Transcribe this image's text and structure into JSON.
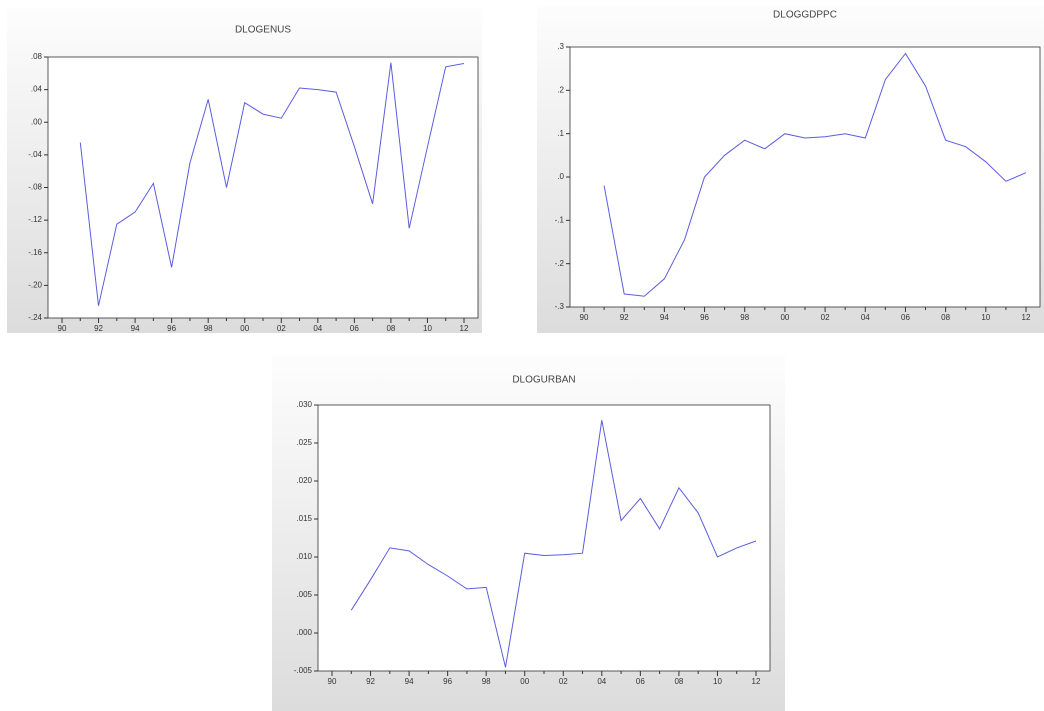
{
  "chart_data": [
    {
      "type": "line",
      "title": "DLOGENUS",
      "color": "#5c5ce0",
      "categories": [
        "90",
        null,
        "92",
        null,
        "94",
        null,
        "96",
        null,
        "98",
        null,
        "00",
        null,
        "02",
        null,
        "04",
        null,
        "06",
        null,
        "08",
        null,
        "10",
        null,
        "12"
      ],
      "values": [
        null,
        -0.025,
        -0.225,
        -0.125,
        -0.11,
        -0.075,
        -0.178,
        -0.05,
        0.028,
        -0.08,
        0.024,
        0.01,
        0.005,
        0.042,
        0.04,
        0.037,
        -0.03,
        -0.1,
        0.073,
        -0.13,
        -0.03,
        0.068,
        0.072
      ],
      "ylim": [
        -0.24,
        0.08
      ],
      "yticks": [
        {
          "value": 0.08,
          "label": ".08"
        },
        {
          "value": 0.04,
          "label": ".04"
        },
        {
          "value": 0,
          "label": ".00"
        },
        {
          "value": -0.04,
          "label": "-.04"
        },
        {
          "value": -0.08,
          "label": "-.08"
        },
        {
          "value": -0.12,
          "label": "-.12"
        },
        {
          "value": -0.16,
          "label": "-.16"
        },
        {
          "value": -0.2,
          "label": "-.20"
        },
        {
          "value": -0.24,
          "label": "-.24"
        }
      ]
    },
    {
      "type": "line",
      "title": "DLOGGDPPC",
      "color": "#5c5ce0",
      "categories": [
        "90",
        null,
        "92",
        null,
        "94",
        null,
        "96",
        null,
        "98",
        null,
        "00",
        null,
        "02",
        null,
        "04",
        null,
        "06",
        null,
        "08",
        null,
        "10",
        null,
        "12"
      ],
      "values": [
        null,
        -0.02,
        -0.27,
        -0.275,
        -0.235,
        -0.145,
        0.0,
        0.05,
        0.085,
        0.065,
        0.1,
        0.09,
        0.093,
        0.1,
        0.09,
        0.225,
        0.285,
        0.21,
        0.085,
        0.07,
        0.035,
        -0.01,
        0.01
      ],
      "ylim": [
        -0.3,
        0.3
      ],
      "yticks": [
        {
          "value": 0.3,
          "label": ".3"
        },
        {
          "value": 0.2,
          "label": ".2"
        },
        {
          "value": 0.1,
          "label": ".1"
        },
        {
          "value": 0,
          "label": ".0"
        },
        {
          "value": -0.1,
          "label": "-.1"
        },
        {
          "value": -0.2,
          "label": "-.2"
        },
        {
          "value": -0.3,
          "label": "-.3"
        }
      ]
    },
    {
      "type": "line",
      "title": "DLOGURBAN",
      "color": "#5c5ce0",
      "categories": [
        "90",
        null,
        "92",
        null,
        "94",
        null,
        "96",
        null,
        "98",
        null,
        "00",
        null,
        "02",
        null,
        "04",
        null,
        "06",
        null,
        "08",
        null,
        "10",
        null,
        "12"
      ],
      "values": [
        null,
        0.003,
        0.007,
        0.0112,
        0.0108,
        0.009,
        0.0075,
        0.0058,
        0.006,
        -0.0045,
        0.0105,
        0.0102,
        0.0103,
        0.0105,
        0.028,
        0.0148,
        0.0177,
        0.0137,
        0.0191,
        0.0158,
        0.01,
        0.0112,
        0.0121
      ],
      "ylim": [
        -0.005,
        0.03
      ],
      "yticks": [
        {
          "value": 0.03,
          "label": ".030"
        },
        {
          "value": 0.025,
          "label": ".025"
        },
        {
          "value": 0.02,
          "label": ".020"
        },
        {
          "value": 0.015,
          "label": ".015"
        },
        {
          "value": 0.01,
          "label": ".010"
        },
        {
          "value": 0.005,
          "label": ".005"
        },
        {
          "value": 0,
          "label": ".000"
        },
        {
          "value": -0.005,
          "label": "-.005"
        }
      ]
    }
  ]
}
